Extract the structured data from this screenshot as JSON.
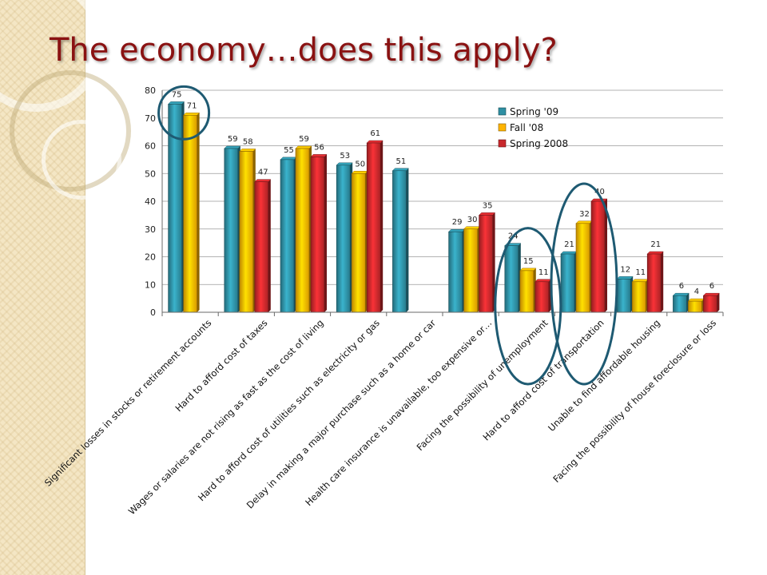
{
  "slide": {
    "title": "The economy…does this apply?"
  },
  "chart_data": {
    "type": "bar",
    "ylim": [
      0,
      80
    ],
    "yticks": [
      0,
      10,
      20,
      30,
      40,
      50,
      60,
      70,
      80
    ],
    "grid": true,
    "legend_position": "top-right",
    "categories": [
      "Significant losses in stocks or retirement accounts",
      "Hard to afford cost of taxes",
      "Wages or salaries are not rising as fast as the cost of living",
      "Hard to afford cost of utilities such as electricity or gas",
      "Delay in making a major purchase such as a home or car",
      "Health care insurance is unavailable, too expensive or…",
      "Facing the possibility of unemployment",
      "Hard to afford cost of transportation",
      "Unable to find affordable housing",
      "Facing the possibility of house foreclosure or loss"
    ],
    "series": [
      {
        "name": "Spring '09",
        "color": "#2e8fa3",
        "values": [
          75,
          59,
          55,
          53,
          51,
          29,
          24,
          21,
          12,
          6
        ]
      },
      {
        "name": "Fall '08",
        "color": "#ffb400",
        "values": [
          71,
          58,
          59,
          50,
          null,
          30,
          15,
          32,
          11,
          4
        ]
      },
      {
        "name": "Spring 2008",
        "color": "#c8282c",
        "values": [
          null,
          47,
          56,
          61,
          null,
          35,
          11,
          40,
          21,
          6
        ]
      }
    ],
    "highlight_color": "#1e5a72",
    "highlighted_categories": [
      0,
      6,
      7
    ]
  }
}
